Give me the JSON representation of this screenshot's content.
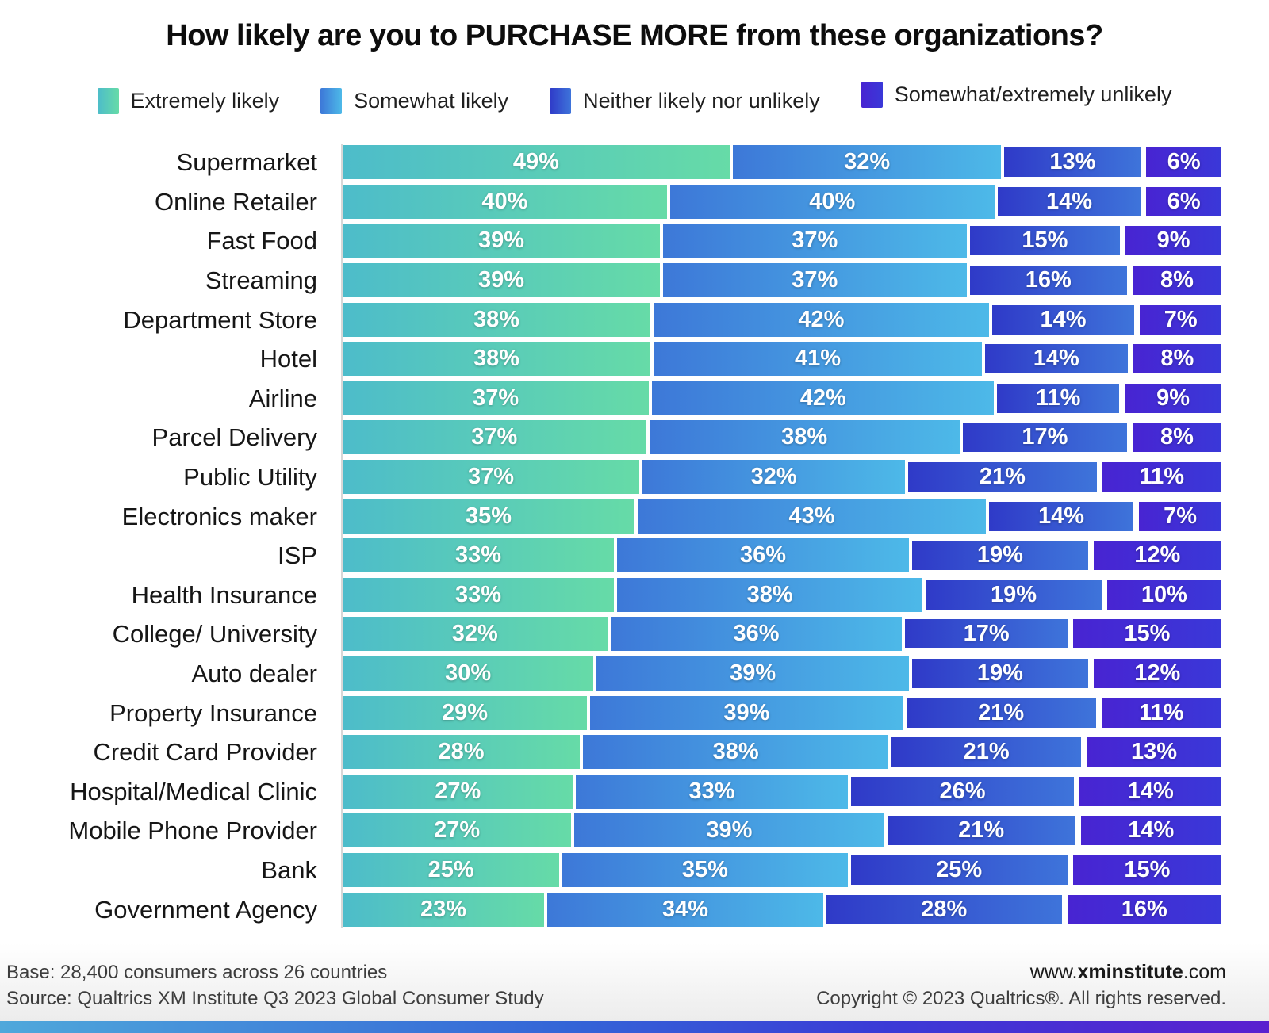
{
  "title": "How likely are you to PURCHASE MORE from these organizations?",
  "legend": {
    "items": [
      "Extremely likely",
      "Somewhat likely",
      "Neither likely nor unlikely",
      "Somewhat/extremely unlikely"
    ]
  },
  "chart_data": {
    "type": "bar",
    "orientation": "horizontal",
    "stacked": true,
    "unit": "%",
    "value_suffix": "%",
    "legend_position": "top",
    "series_names": [
      "Extremely likely",
      "Somewhat likely",
      "Neither likely nor unlikely",
      "Somewhat/extremely unlikely"
    ],
    "series_colors": [
      [
        "#4dbcca",
        "#66dba7"
      ],
      [
        "#3d78d8",
        "#4db9e8"
      ],
      [
        "#2f3ac8",
        "#3e74da"
      ],
      [
        "#4824d2",
        "#3a38d8"
      ]
    ],
    "categories": [
      "Supermarket",
      "Online Retailer",
      "Fast Food",
      "Streaming",
      "Department Store",
      "Hotel",
      "Airline",
      "Parcel Delivery",
      "Public Utility",
      "Electronics maker",
      "ISP",
      "Health Insurance",
      "College/ University",
      "Auto dealer",
      "Property Insurance",
      "Credit Card Provider",
      "Hospital/Medical Clinic",
      "Mobile Phone Provider",
      "Bank",
      "Government Agency"
    ],
    "values": [
      [
        49,
        32,
        13,
        6
      ],
      [
        40,
        40,
        14,
        6
      ],
      [
        39,
        37,
        15,
        9
      ],
      [
        39,
        37,
        16,
        8
      ],
      [
        38,
        42,
        14,
        7
      ],
      [
        38,
        41,
        14,
        8
      ],
      [
        37,
        42,
        11,
        9
      ],
      [
        37,
        38,
        17,
        8
      ],
      [
        37,
        32,
        21,
        11
      ],
      [
        35,
        43,
        14,
        7
      ],
      [
        33,
        36,
        19,
        12
      ],
      [
        33,
        38,
        19,
        10
      ],
      [
        32,
        36,
        17,
        15
      ],
      [
        30,
        39,
        19,
        12
      ],
      [
        29,
        39,
        21,
        11
      ],
      [
        28,
        38,
        21,
        13
      ],
      [
        27,
        33,
        26,
        14
      ],
      [
        27,
        39,
        21,
        14
      ],
      [
        25,
        35,
        25,
        15
      ],
      [
        23,
        34,
        28,
        16
      ]
    ]
  },
  "footer": {
    "base": "Base: 28,400 consumers across 26 countries",
    "source": "Source: Qualtrics XM Institute Q3 2023 Global Consumer Study",
    "site_prefix": "www.",
    "site_bold": "xminstitute",
    "site_suffix": ".com",
    "copyright": "Copyright © 2023 Qualtrics®. All rights reserved."
  }
}
